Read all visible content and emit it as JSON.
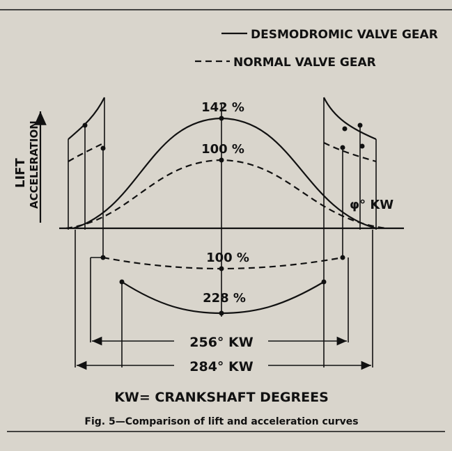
{
  "legend": {
    "solid": "DESMODROMIC VALVE GEAR",
    "dashed": "NORMAL VALVE GEAR"
  },
  "axis": {
    "y_label_1": "LIFT",
    "y_label_2": "ACCELERATION",
    "x_label": "φ° KW"
  },
  "annotations": {
    "lift_desmo": "142 %",
    "lift_normal": "100 %",
    "accel_normal": "100 %",
    "accel_desmo": "228 %"
  },
  "dimensions": {
    "normal": "256° KW",
    "desmo": "284° KW"
  },
  "definition": "KW= CRANKSHAFT DEGREES",
  "caption": "Fig. 5—Comparison of lift and acceleration curves"
}
